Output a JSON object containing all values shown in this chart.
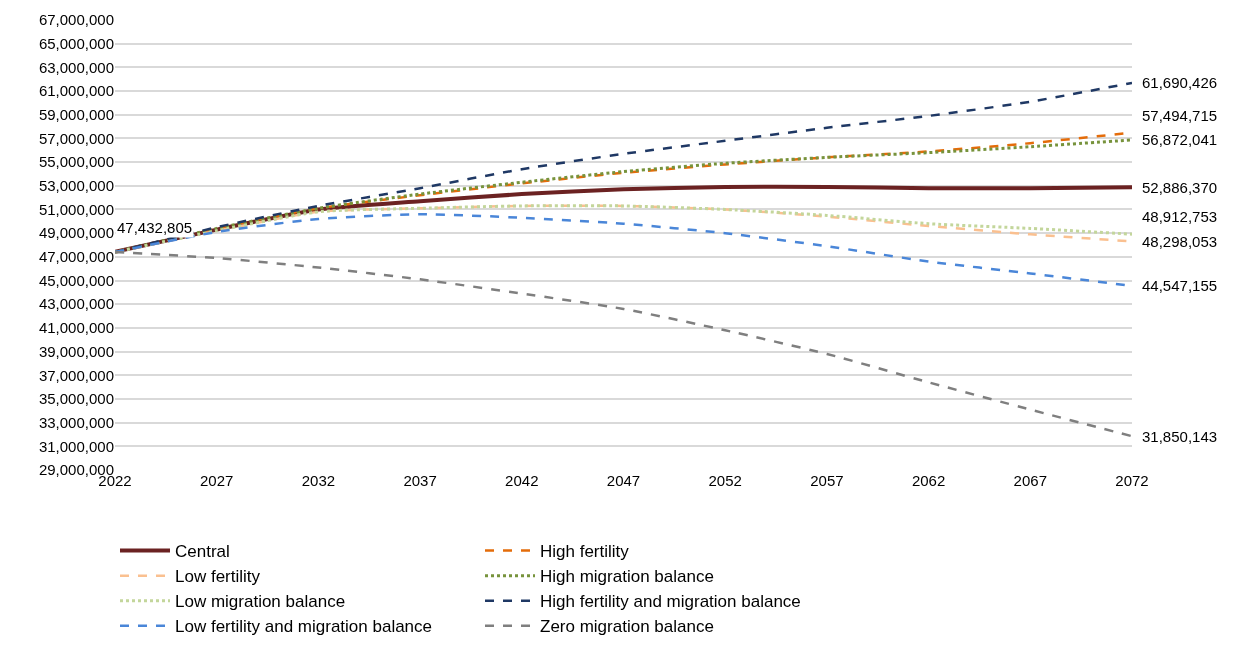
{
  "chart_data": {
    "type": "line",
    "x": [
      2022,
      2027,
      2032,
      2037,
      2042,
      2047,
      2052,
      2057,
      2062,
      2067,
      2072
    ],
    "xlim": [
      2022,
      2072
    ],
    "xticks": [
      2022,
      2027,
      2032,
      2037,
      2042,
      2047,
      2052,
      2057,
      2062,
      2067,
      2072
    ],
    "ylim": [
      29000000,
      67000000
    ],
    "yticks": [
      {
        "value": 29000000,
        "label": "29,000,000"
      },
      {
        "value": 31000000,
        "label": "31,000,000"
      },
      {
        "value": 33000000,
        "label": "33,000,000"
      },
      {
        "value": 35000000,
        "label": "35,000,000"
      },
      {
        "value": 37000000,
        "label": "37,000,000"
      },
      {
        "value": 39000000,
        "label": "39,000,000"
      },
      {
        "value": 41000000,
        "label": "41,000,000"
      },
      {
        "value": 43000000,
        "label": "43,000,000"
      },
      {
        "value": 45000000,
        "label": "45,000,000"
      },
      {
        "value": 47000000,
        "label": "47,000,000"
      },
      {
        "value": 49000000,
        "label": "49,000,000"
      },
      {
        "value": 51000000,
        "label": "51,000,000"
      },
      {
        "value": 53000000,
        "label": "53,000,000"
      },
      {
        "value": 55000000,
        "label": "55,000,000"
      },
      {
        "value": 57000000,
        "label": "57,000,000"
      },
      {
        "value": 59000000,
        "label": "59,000,000"
      },
      {
        "value": 61000000,
        "label": "61,000,000"
      },
      {
        "value": 63000000,
        "label": "63,000,000"
      },
      {
        "value": 65000000,
        "label": "65,000,000"
      },
      {
        "value": 67000000,
        "label": "67,000,000"
      }
    ],
    "grid": "y",
    "legend": "bottom",
    "marker": "none",
    "series": [
      {
        "name": "Central",
        "color": "#6b2222",
        "line_style": "solid",
        "values": [
          47432805,
          49300000,
          51000000,
          51700000,
          52300000,
          52700000,
          52900000,
          52900000,
          52800000,
          52800000,
          52886370
        ],
        "value_labels": [
          "47,432,805",
          null,
          null,
          null,
          null,
          null,
          null,
          null,
          null,
          null,
          "52,886,370"
        ]
      },
      {
        "name": "High fertility",
        "color": "#e46c0a",
        "line_style": "dashed",
        "values": [
          47400000,
          49400000,
          51100000,
          52200000,
          53200000,
          54100000,
          54800000,
          55400000,
          55900000,
          56600000,
          57494715
        ],
        "value_labels": [
          null,
          null,
          null,
          null,
          null,
          null,
          null,
          null,
          null,
          null,
          "57,494,715"
        ]
      },
      {
        "name": "Low fertility",
        "color": "#fac090",
        "line_style": "dashed",
        "values": [
          47400000,
          49200000,
          50800000,
          51100000,
          51300000,
          51300000,
          51000000,
          50400000,
          49600000,
          48900000,
          48298053
        ],
        "value_labels": [
          null,
          null,
          null,
          null,
          null,
          null,
          null,
          null,
          null,
          null,
          "48,298,053"
        ]
      },
      {
        "name": "High migration balance",
        "color": "#77933c",
        "line_style": "dotted",
        "values": [
          47400000,
          49400000,
          51100000,
          52300000,
          53300000,
          54200000,
          54900000,
          55400000,
          55800000,
          56300000,
          56872041
        ],
        "value_labels": [
          null,
          null,
          null,
          null,
          null,
          null,
          null,
          null,
          null,
          null,
          "56,872,041"
        ]
      },
      {
        "name": "Low migration balance",
        "color": "#c3d69b",
        "line_style": "dotted",
        "values": [
          47400000,
          49200000,
          50800000,
          51100000,
          51300000,
          51300000,
          51000000,
          50500000,
          49800000,
          49400000,
          48912753
        ],
        "value_labels": [
          null,
          null,
          null,
          null,
          null,
          null,
          null,
          null,
          null,
          null,
          "48,912,753"
        ]
      },
      {
        "name": "High fertility and migration balance",
        "color": "#1f3864",
        "line_style": "dashed",
        "values": [
          47400000,
          49500000,
          51300000,
          52800000,
          54400000,
          55700000,
          56800000,
          57900000,
          58900000,
          60100000,
          61690426
        ],
        "value_labels": [
          null,
          null,
          null,
          null,
          null,
          null,
          null,
          null,
          null,
          null,
          "61,690,426"
        ]
      },
      {
        "name": "Low fertility and migration balance",
        "color": "#4a86d8",
        "line_style": "dashed",
        "values": [
          47400000,
          49100000,
          50200000,
          50600000,
          50300000,
          49800000,
          49000000,
          47900000,
          46600000,
          45600000,
          44547155
        ],
        "value_labels": [
          null,
          null,
          null,
          null,
          null,
          null,
          null,
          null,
          null,
          null,
          "44,547,155"
        ]
      },
      {
        "name": "Zero migration balance",
        "color": "#7f7f7f",
        "line_style": "dashed",
        "values": [
          47400000,
          46900000,
          46100000,
          45100000,
          43900000,
          42600000,
          40800000,
          38800000,
          36400000,
          34100000,
          31850143
        ],
        "value_labels": [
          null,
          null,
          null,
          null,
          null,
          null,
          null,
          null,
          null,
          null,
          "31,850,143"
        ]
      }
    ]
  }
}
